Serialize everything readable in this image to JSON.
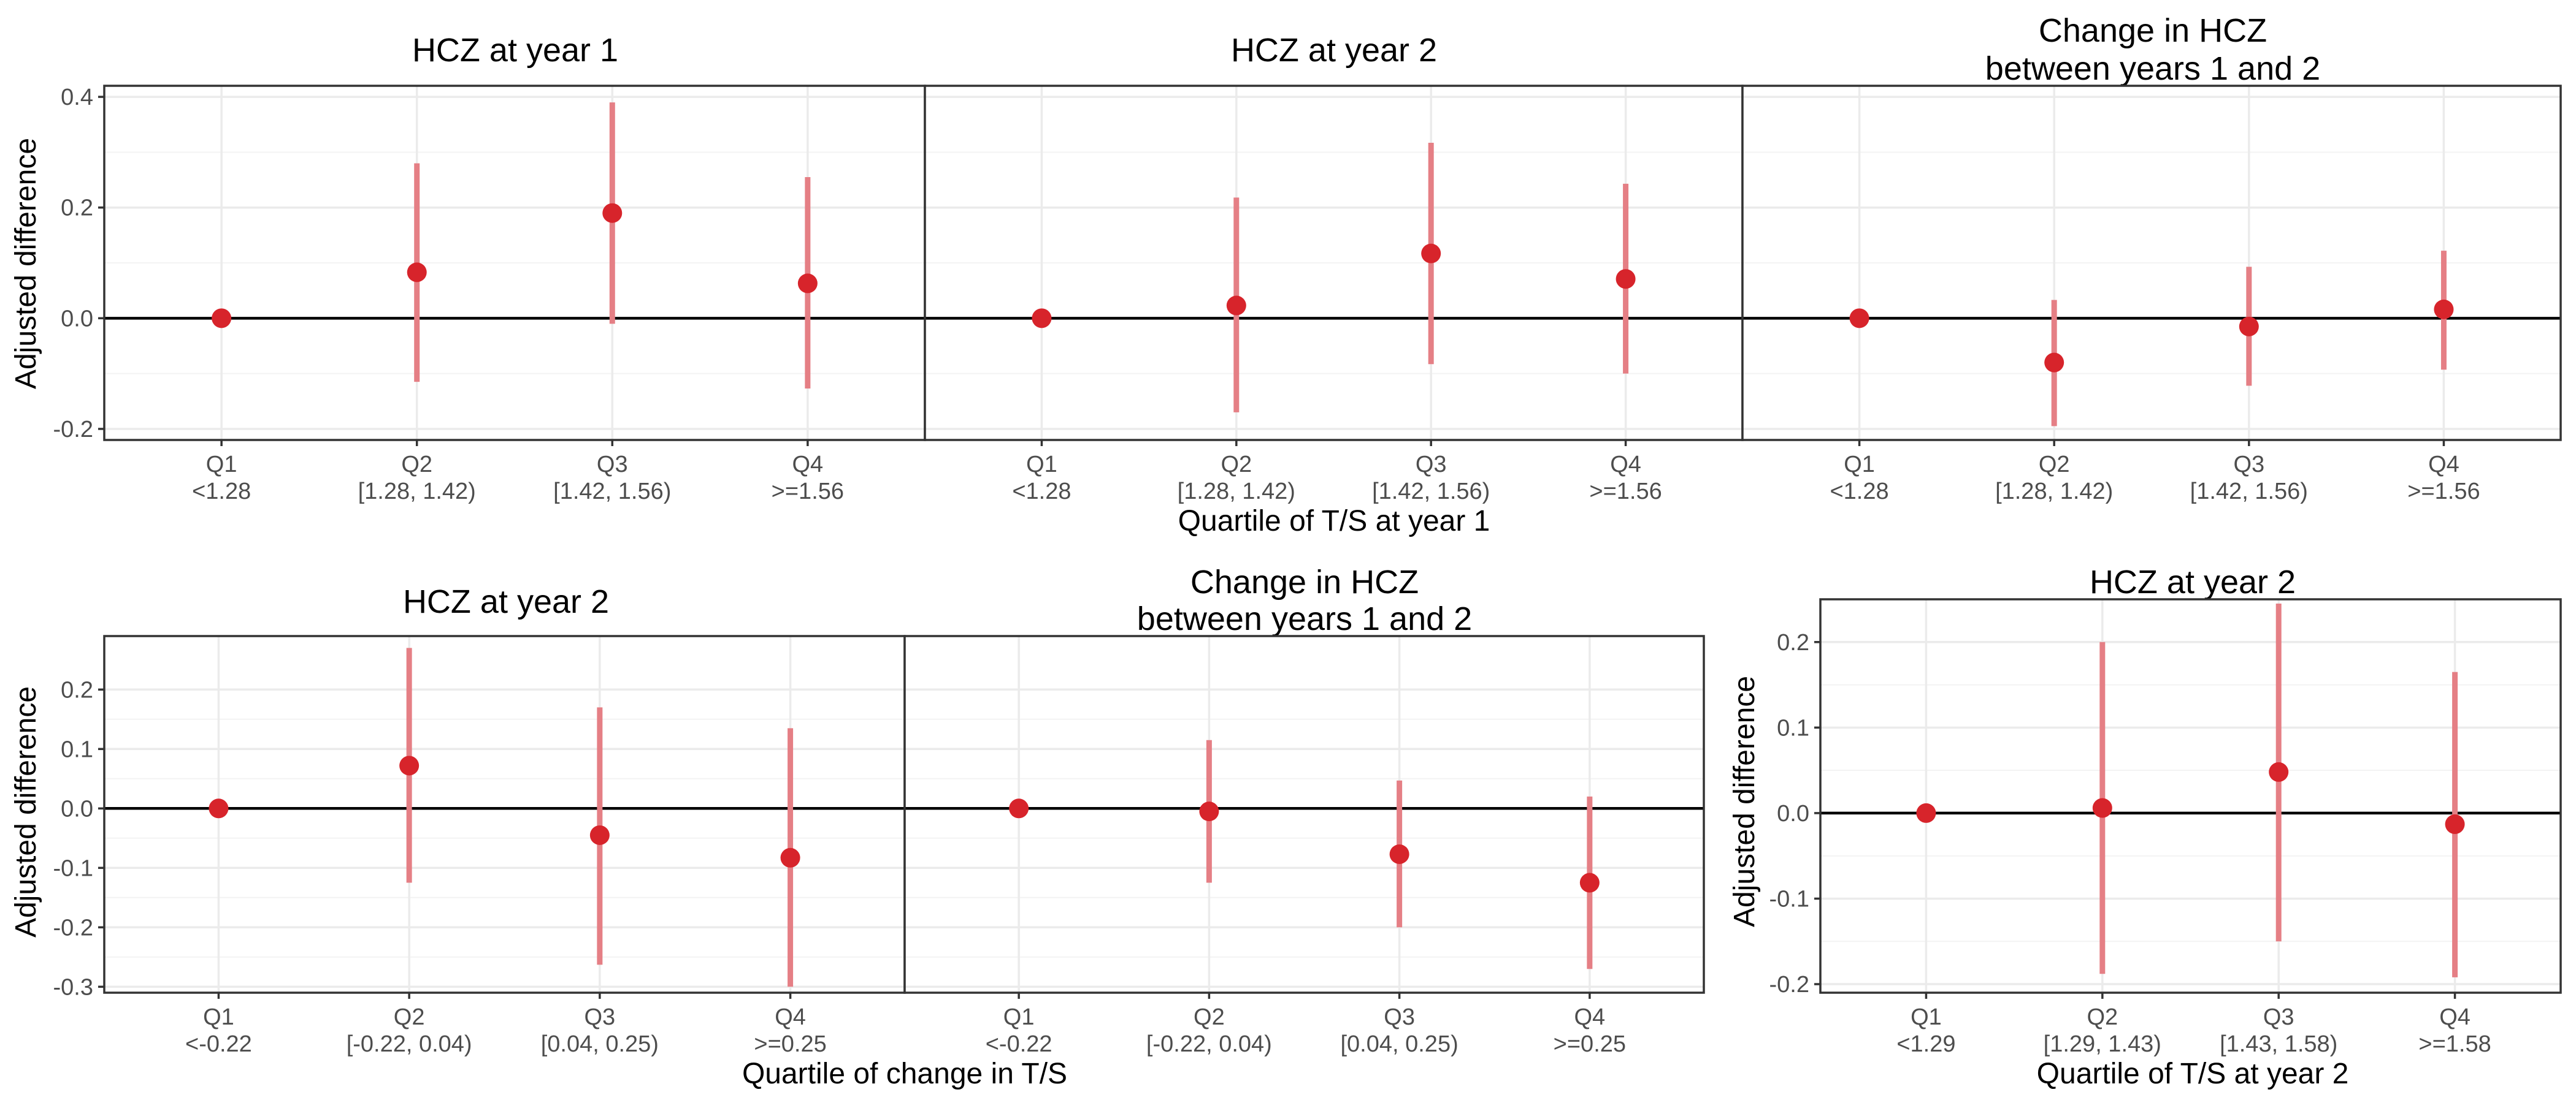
{
  "colors": {
    "point": "#d7242b",
    "interval": "#e57f85",
    "zero_line": "#000000",
    "grid": "#ebebeb",
    "frame": "#333333"
  },
  "chart_data": [
    {
      "type": "scatter",
      "title": "HCZ at year 1",
      "subtitle": "",
      "categories": [
        "Q1",
        "Q2",
        "Q3",
        "Q4"
      ],
      "category_ranges": [
        "<1.28",
        "[1.28, 1.42)",
        "[1.42, 1.56)",
        ">=1.56"
      ],
      "estimates": [
        0.0,
        0.083,
        0.19,
        0.063
      ],
      "ci_lower": [
        0.0,
        -0.115,
        -0.01,
        -0.127
      ],
      "ci_upper": [
        0.0,
        0.28,
        0.39,
        0.255
      ],
      "ylabel": "Adjusted difference",
      "xlabel": "",
      "ylim": [
        -0.22,
        0.42
      ],
      "yticks": [
        -0.2,
        0.0,
        0.2,
        0.4
      ],
      "ytick_labels": [
        "-0.2",
        "0.0",
        "0.2",
        "0.4"
      ],
      "grid": true,
      "legend": "none"
    },
    {
      "type": "scatter",
      "title": "HCZ at year 2",
      "subtitle": "",
      "categories": [
        "Q1",
        "Q2",
        "Q3",
        "Q4"
      ],
      "category_ranges": [
        "<1.28",
        "[1.28, 1.42)",
        "[1.42, 1.56)",
        ">=1.56"
      ],
      "estimates": [
        0.0,
        0.023,
        0.117,
        0.071
      ],
      "ci_lower": [
        0.0,
        -0.17,
        -0.083,
        -0.1
      ],
      "ci_upper": [
        0.0,
        0.218,
        0.317,
        0.243
      ],
      "ylabel": "",
      "xlabel": "Quartile of T/S at year 1",
      "ylim": [
        -0.22,
        0.42
      ],
      "yticks": [
        -0.2,
        0.0,
        0.2,
        0.4
      ],
      "ytick_labels": [
        "",
        "",
        "",
        ""
      ],
      "grid": true,
      "legend": "none"
    },
    {
      "type": "scatter",
      "title": "Change in HCZ",
      "subtitle": "between years 1 and 2",
      "categories": [
        "Q1",
        "Q2",
        "Q3",
        "Q4"
      ],
      "category_ranges": [
        "<1.28",
        "[1.28, 1.42)",
        "[1.42, 1.56)",
        ">=1.56"
      ],
      "estimates": [
        0.0,
        -0.08,
        -0.015,
        0.016
      ],
      "ci_lower": [
        0.0,
        -0.195,
        -0.122,
        -0.093
      ],
      "ci_upper": [
        0.0,
        0.033,
        0.093,
        0.122
      ],
      "ylabel": "",
      "xlabel": "",
      "ylim": [
        -0.22,
        0.42
      ],
      "yticks": [
        -0.2,
        0.0,
        0.2,
        0.4
      ],
      "ytick_labels": [
        "",
        "",
        "",
        ""
      ],
      "grid": true,
      "legend": "none"
    },
    {
      "type": "scatter",
      "title": "HCZ at year 2",
      "subtitle": "",
      "categories": [
        "Q1",
        "Q2",
        "Q3",
        "Q4"
      ],
      "category_ranges": [
        "<-0.22",
        "[-0.22, 0.04)",
        "[0.04, 0.25)",
        ">=0.25"
      ],
      "estimates": [
        0.0,
        0.072,
        -0.045,
        -0.083
      ],
      "ci_lower": [
        0.0,
        -0.125,
        -0.263,
        -0.3
      ],
      "ci_upper": [
        0.0,
        0.27,
        0.17,
        0.135
      ],
      "ylabel": "Adjusted difference",
      "xlabel": "",
      "ylim": [
        -0.31,
        0.29
      ],
      "yticks": [
        -0.3,
        -0.2,
        -0.1,
        0.0,
        0.1,
        0.2
      ],
      "ytick_labels": [
        "-0.3",
        "-0.2",
        "-0.1",
        "0.0",
        "0.1",
        "0.2"
      ],
      "grid": true,
      "legend": "none"
    },
    {
      "type": "scatter",
      "title": "Change in HCZ",
      "subtitle": "between years 1 and 2",
      "categories": [
        "Q1",
        "Q2",
        "Q3",
        "Q4"
      ],
      "category_ranges": [
        "<-0.22",
        "[-0.22, 0.04)",
        "[0.04, 0.25)",
        ">=0.25"
      ],
      "estimates": [
        0.0,
        -0.005,
        -0.077,
        -0.125
      ],
      "ci_lower": [
        0.0,
        -0.125,
        -0.2,
        -0.27
      ],
      "ci_upper": [
        0.0,
        0.115,
        0.047,
        0.02
      ],
      "ylabel": "",
      "xlabel": "Quartile of change in T/S",
      "ylim": [
        -0.31,
        0.29
      ],
      "yticks": [
        -0.3,
        -0.2,
        -0.1,
        0.0,
        0.1,
        0.2
      ],
      "ytick_labels": [
        "",
        "",
        "",
        "",
        "",
        ""
      ],
      "grid": true,
      "legend": "none"
    },
    {
      "type": "scatter",
      "title": "HCZ at year 2",
      "subtitle": "",
      "categories": [
        "Q1",
        "Q2",
        "Q3",
        "Q4"
      ],
      "category_ranges": [
        "<1.29",
        "[1.29, 1.43)",
        "[1.43, 1.58)",
        ">=1.58"
      ],
      "estimates": [
        0.0,
        0.006,
        0.048,
        -0.013
      ],
      "ci_lower": [
        0.0,
        -0.188,
        -0.15,
        -0.192
      ],
      "ci_upper": [
        0.0,
        0.2,
        0.245,
        0.165
      ],
      "ylabel": "Adjusted difference",
      "xlabel": "Quartile of T/S at year 2",
      "ylim": [
        -0.21,
        0.25
      ],
      "yticks": [
        -0.2,
        -0.1,
        0.0,
        0.1,
        0.2
      ],
      "ytick_labels": [
        "-0.2",
        "-0.1",
        "0.0",
        "0.1",
        "0.2"
      ],
      "grid": true,
      "legend": "none"
    }
  ]
}
